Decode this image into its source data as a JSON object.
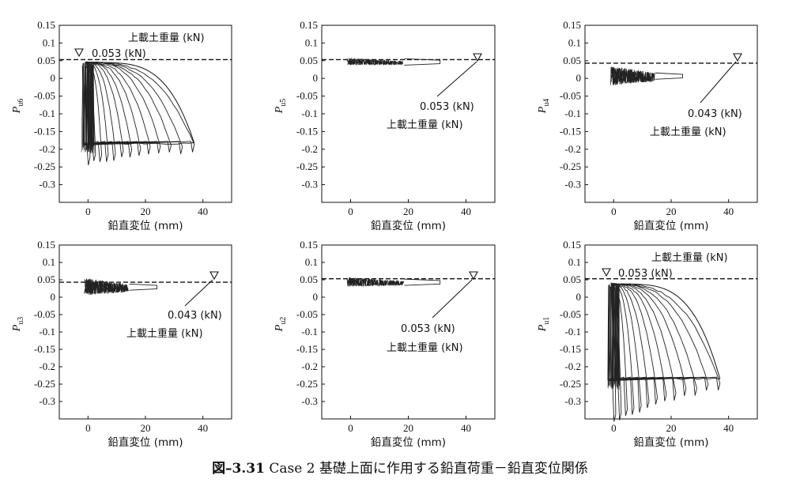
{
  "caption": {
    "number": "図–3.31",
    "text": "Case 2 基礎上面に作用する鉛直荷重－鉛直変位関係"
  },
  "chart_data": [
    {
      "type": "line",
      "ylabel_main": "P",
      "ylabel_sub": "u6",
      "xlabel": "鉛直変位 (mm)",
      "xlim": [
        -10,
        50
      ],
      "ylim": [
        -0.35,
        0.15
      ],
      "xticks": [
        "0",
        "20",
        "40"
      ],
      "yticks": [
        "0.15",
        "0.1",
        "0.05",
        "0",
        "-0.05",
        "-0.1",
        "-0.15",
        "-0.2",
        "-0.25",
        "-0.3"
      ],
      "reference_load": 0.053,
      "annotation": {
        "value": "0.053 (kN)",
        "label": "上載土重量 (kN)"
      },
      "response": {
        "pattern": "cyclic",
        "x_max": 37,
        "y_max": 0.045,
        "y_min": -0.22,
        "y_residual": -0.183
      }
    },
    {
      "type": "line",
      "ylabel_main": "P",
      "ylabel_sub": "u5",
      "xlabel": "鉛直変位 (mm)",
      "xlim": [
        -10,
        50
      ],
      "ylim": [
        -0.35,
        0.15
      ],
      "xticks": [
        "0",
        "20",
        "40"
      ],
      "yticks": [
        "0.15",
        "0.1",
        "0.05",
        "0",
        "-0.05",
        "-0.1",
        "-0.15",
        "-0.2",
        "-0.25",
        "-0.3"
      ],
      "reference_load": 0.053,
      "annotation": {
        "value": "0.053 (kN)",
        "label": "上載土重量 (kN)"
      },
      "response": {
        "pattern": "band",
        "x_max": 31,
        "y_max": 0.058,
        "y_min": 0.037
      }
    },
    {
      "type": "line",
      "ylabel_main": "P",
      "ylabel_sub": "u4",
      "xlabel": "鉛直変位 (mm)",
      "xlim": [
        -10,
        50
      ],
      "ylim": [
        -0.35,
        0.15
      ],
      "xticks": [
        "0",
        "20",
        "40"
      ],
      "yticks": [
        "0.15",
        "0.1",
        "0.05",
        "0",
        "-0.05",
        "-0.1",
        "-0.15",
        "-0.2",
        "-0.25",
        "-0.3"
      ],
      "reference_load": 0.043,
      "annotation": {
        "value": "0.043 (kN)",
        "label": "上載土重量 (kN)"
      },
      "response": {
        "pattern": "band",
        "x_max": 24,
        "y_max": 0.035,
        "y_min": -0.02
      }
    },
    {
      "type": "line",
      "ylabel_main": "P",
      "ylabel_sub": "u3",
      "xlabel": "鉛直変位 (mm)",
      "xlim": [
        -10,
        50
      ],
      "ylim": [
        -0.35,
        0.15
      ],
      "xticks": [
        "0",
        "20",
        "40"
      ],
      "yticks": [
        "0.15",
        "0.1",
        "0.05",
        "0",
        "-0.05",
        "-0.1",
        "-0.15",
        "-0.2",
        "-0.25",
        "-0.3"
      ],
      "reference_load": 0.043,
      "annotation": {
        "value": "0.043 (kN)",
        "label": "上載土重量 (kN)"
      },
      "response": {
        "pattern": "band",
        "x_max": 24,
        "y_max": 0.055,
        "y_min": 0.005
      }
    },
    {
      "type": "line",
      "ylabel_main": "P",
      "ylabel_sub": "u2",
      "xlabel": "鉛直変位 (mm)",
      "xlim": [
        -10,
        50
      ],
      "ylim": [
        -0.35,
        0.15
      ],
      "xticks": [
        "0",
        "20",
        "40"
      ],
      "yticks": [
        "0.15",
        "0.1",
        "0.05",
        "0",
        "-0.05",
        "-0.1",
        "-0.15",
        "-0.2",
        "-0.25",
        "-0.3"
      ],
      "reference_load": 0.053,
      "annotation": {
        "value": "0.053 (kN)",
        "label": "上載土重量 (kN)"
      },
      "response": {
        "pattern": "band",
        "x_max": 31,
        "y_max": 0.058,
        "y_min": 0.03
      }
    },
    {
      "type": "line",
      "ylabel_main": "P",
      "ylabel_sub": "u1",
      "xlabel": "鉛直変位 (mm)",
      "xlim": [
        -10,
        50
      ],
      "ylim": [
        -0.35,
        0.15
      ],
      "xticks": [
        "0",
        "20",
        "40"
      ],
      "yticks": [
        "0.15",
        "0.1",
        "0.05",
        "0",
        "-0.05",
        "-0.1",
        "-0.15",
        "-0.2",
        "-0.25",
        "-0.3"
      ],
      "reference_load": 0.053,
      "annotation": {
        "value": "0.053 (kN)",
        "label": "上載土重量 (kN)"
      },
      "response": {
        "pattern": "cyclic",
        "x_max": 37,
        "y_max": 0.038,
        "y_min": -0.34,
        "y_residual": -0.235
      }
    }
  ]
}
